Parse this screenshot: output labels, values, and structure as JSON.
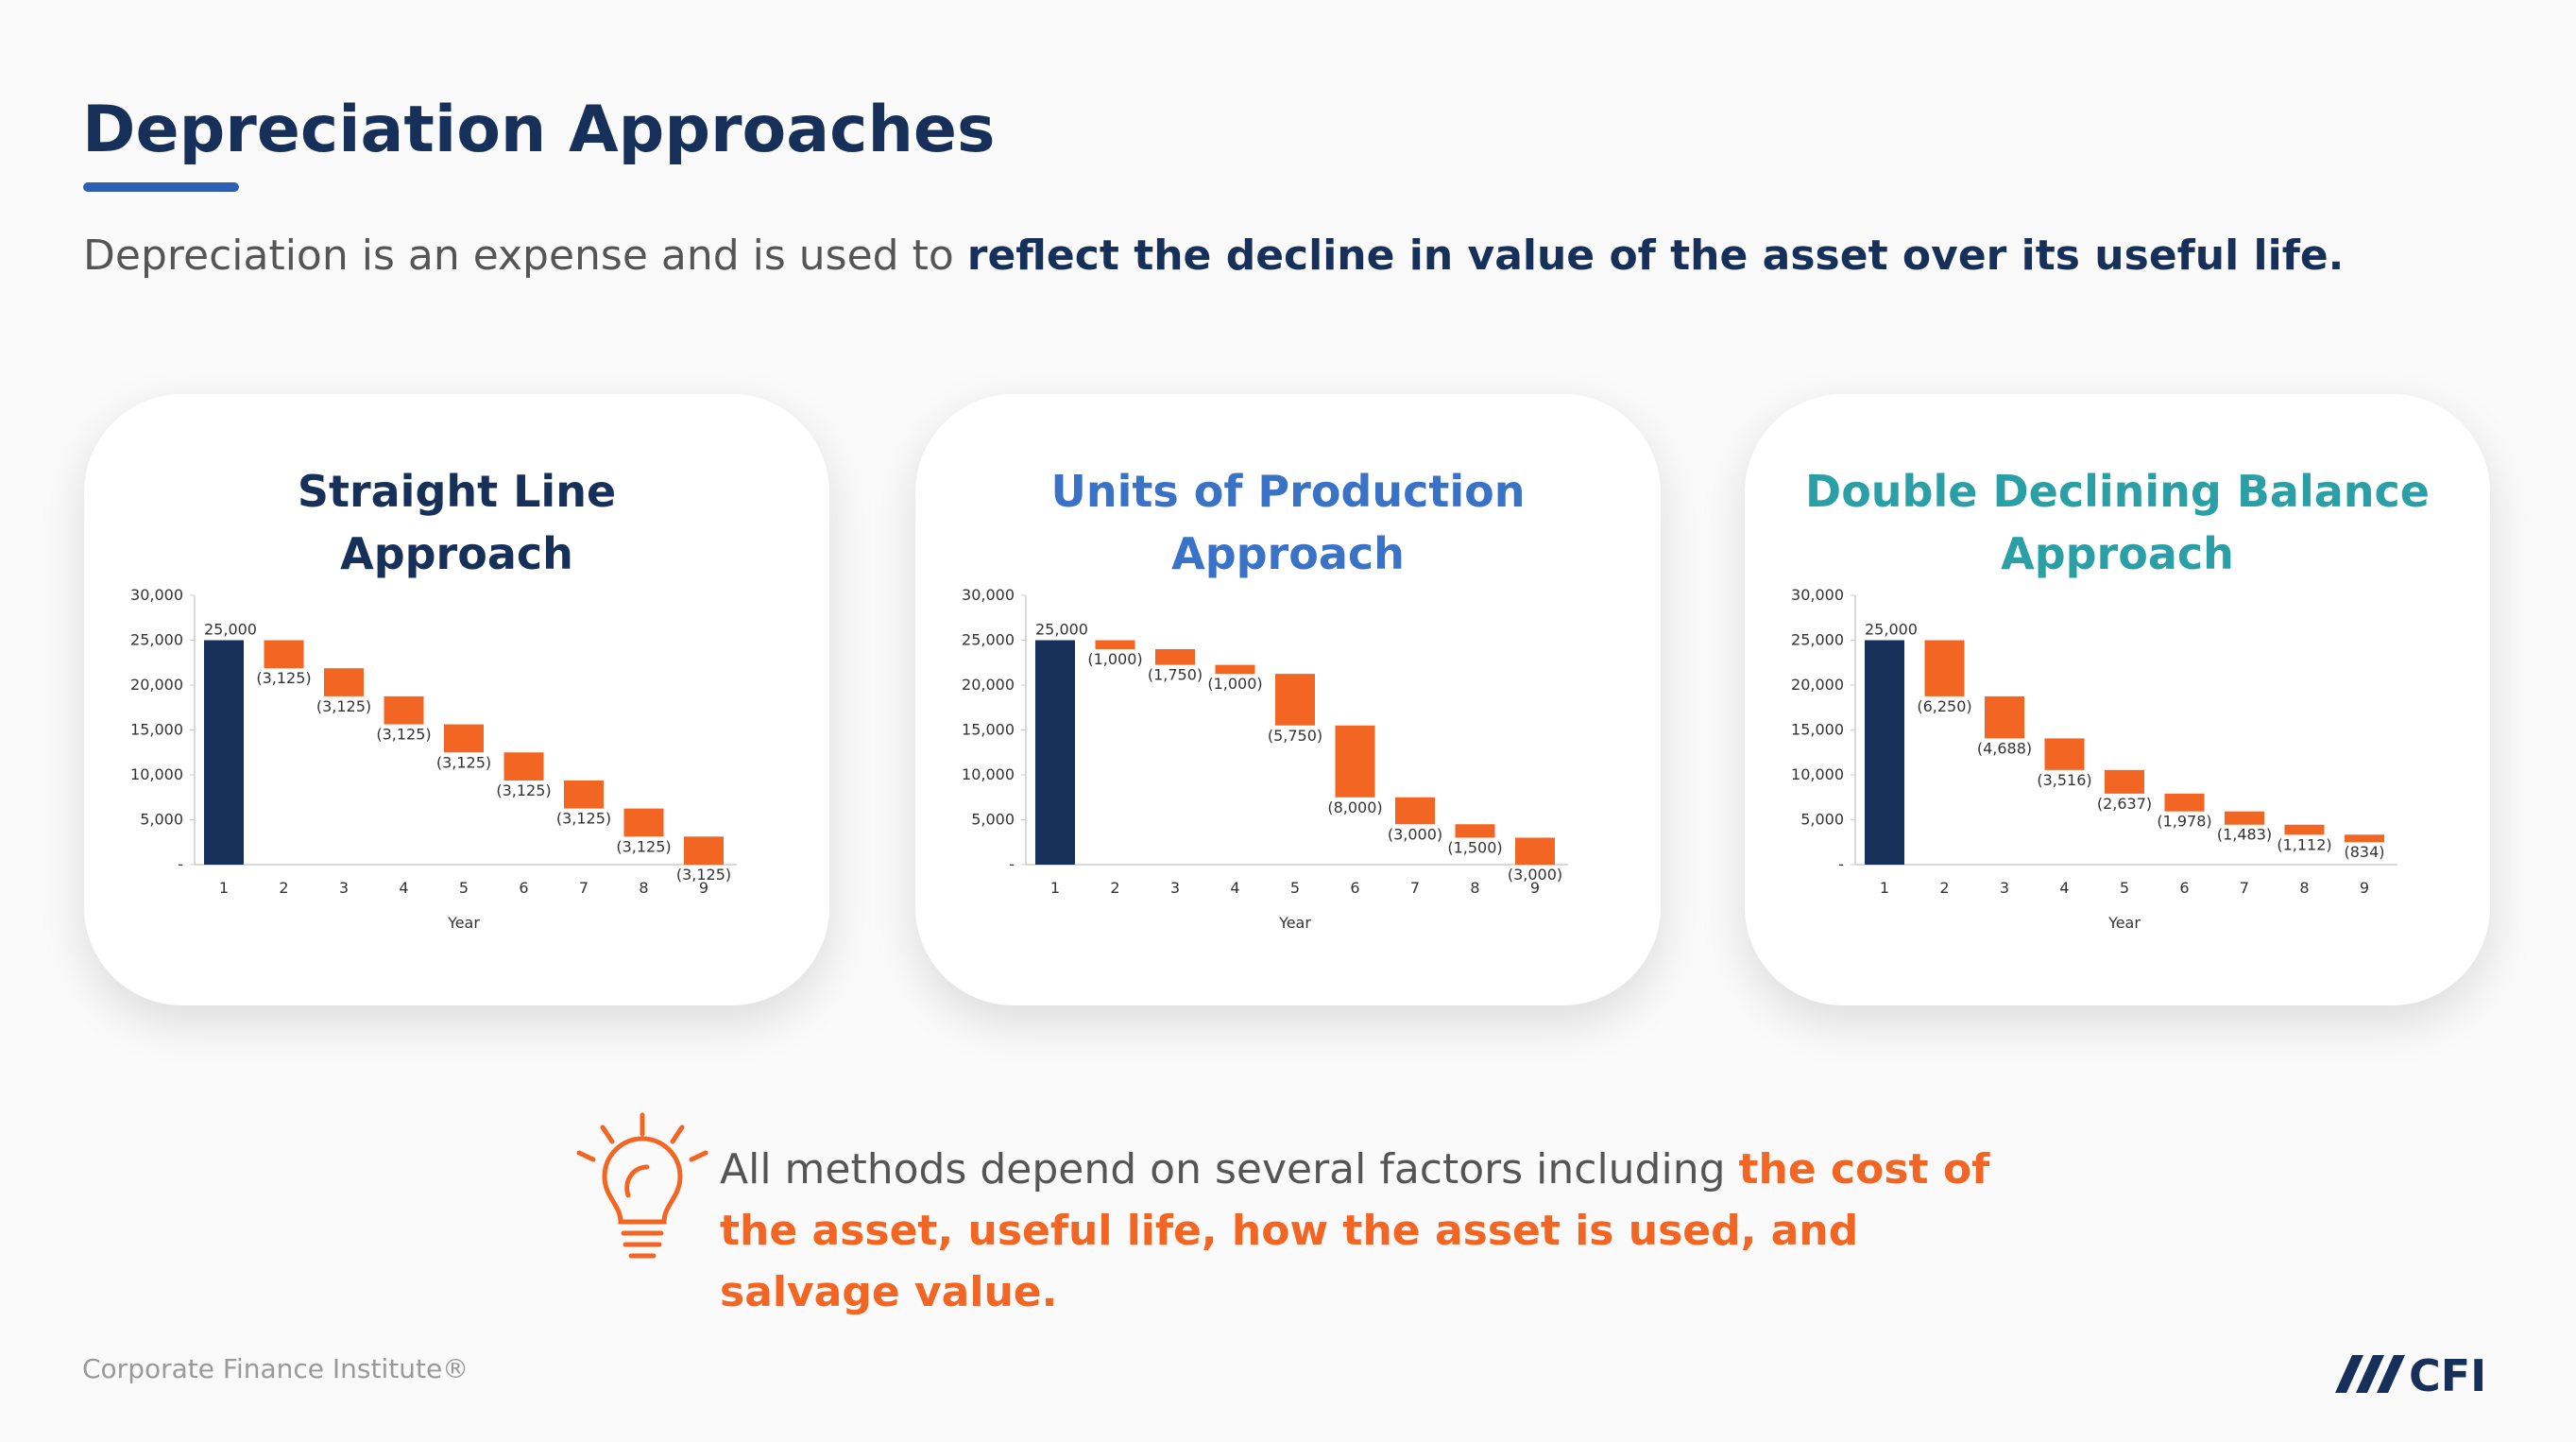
{
  "title": "Depreciation Approaches",
  "subtitle": {
    "plain": "Depreciation is an expense and is used to ",
    "bold": "reflect the decline in value of the asset over its useful life."
  },
  "note": {
    "plain": "All methods depend on several factors including ",
    "highlight": "the cost of the asset, useful life, how the asset is used, and salvage value."
  },
  "footer": "Corporate Finance Institute®",
  "logo": "CFI",
  "chart_data": [
    {
      "type": "waterfall",
      "title": "Straight Line\nApproach",
      "title_color": "#16305a",
      "x_label": "Year",
      "categories": [
        "1",
        "2",
        "3",
        "4",
        "5",
        "6",
        "7",
        "8",
        "9"
      ],
      "values": [
        25000,
        -3125,
        -3125,
        -3125,
        -3125,
        -3125,
        -3125,
        -3125,
        -3125
      ],
      "value_labels": [
        "25,000",
        "(3,125)",
        "(3,125)",
        "(3,125)",
        "(3,125)",
        "(3,125)",
        "(3,125)",
        "(3,125)",
        "(3,125)"
      ],
      "colors": {
        "start": "#16305a",
        "decrease": "#f26522"
      },
      "ylim": [
        0,
        30000
      ],
      "yticks": [
        {
          "value": 0,
          "label": "-"
        },
        {
          "value": 5000,
          "label": "5,000"
        },
        {
          "value": 10000,
          "label": "10,000"
        },
        {
          "value": 15000,
          "label": "15,000"
        },
        {
          "value": 20000,
          "label": "20,000"
        },
        {
          "value": 25000,
          "label": "25,000"
        },
        {
          "value": 30000,
          "label": "30,000"
        }
      ]
    },
    {
      "type": "waterfall",
      "title": "Units of Production\nApproach",
      "title_color": "#3a72c8",
      "x_label": "Year",
      "categories": [
        "1",
        "2",
        "3",
        "4",
        "5",
        "6",
        "7",
        "8",
        "9"
      ],
      "values": [
        25000,
        -1000,
        -1750,
        -1000,
        -5750,
        -8000,
        -3000,
        -1500,
        -3000
      ],
      "value_labels": [
        "25,000",
        "(1,000)",
        "(1,750)",
        "(1,000)",
        "(5,750)",
        "(8,000)",
        "(3,000)",
        "(1,500)",
        "(3,000)"
      ],
      "colors": {
        "start": "#16305a",
        "decrease": "#f26522"
      },
      "ylim": [
        0,
        30000
      ],
      "yticks": [
        {
          "value": 0,
          "label": "-"
        },
        {
          "value": 5000,
          "label": "5,000"
        },
        {
          "value": 10000,
          "label": "10,000"
        },
        {
          "value": 15000,
          "label": "15,000"
        },
        {
          "value": 20000,
          "label": "20,000"
        },
        {
          "value": 25000,
          "label": "25,000"
        },
        {
          "value": 30000,
          "label": "30,000"
        }
      ]
    },
    {
      "type": "waterfall",
      "title": "Double Declining Balance\nApproach",
      "title_color": "#2a9fa6",
      "x_label": "Year",
      "categories": [
        "1",
        "2",
        "3",
        "4",
        "5",
        "6",
        "7",
        "8",
        "9"
      ],
      "values": [
        25000,
        -6250,
        -4688,
        -3516,
        -2637,
        -1978,
        -1483,
        -1112,
        -834
      ],
      "value_labels": [
        "25,000",
        "(6,250)",
        "(4,688)",
        "(3,516)",
        "(2,637)",
        "(1,978)",
        "(1,483)",
        "(1,112)",
        "(834)"
      ],
      "colors": {
        "start": "#16305a",
        "decrease": "#f26522"
      },
      "ylim": [
        0,
        30000
      ],
      "yticks": [
        {
          "value": 0,
          "label": "-"
        },
        {
          "value": 5000,
          "label": "5,000"
        },
        {
          "value": 10000,
          "label": "10,000"
        },
        {
          "value": 15000,
          "label": "15,000"
        },
        {
          "value": 20000,
          "label": "20,000"
        },
        {
          "value": 25000,
          "label": "25,000"
        },
        {
          "value": 30000,
          "label": "30,000"
        }
      ]
    }
  ]
}
